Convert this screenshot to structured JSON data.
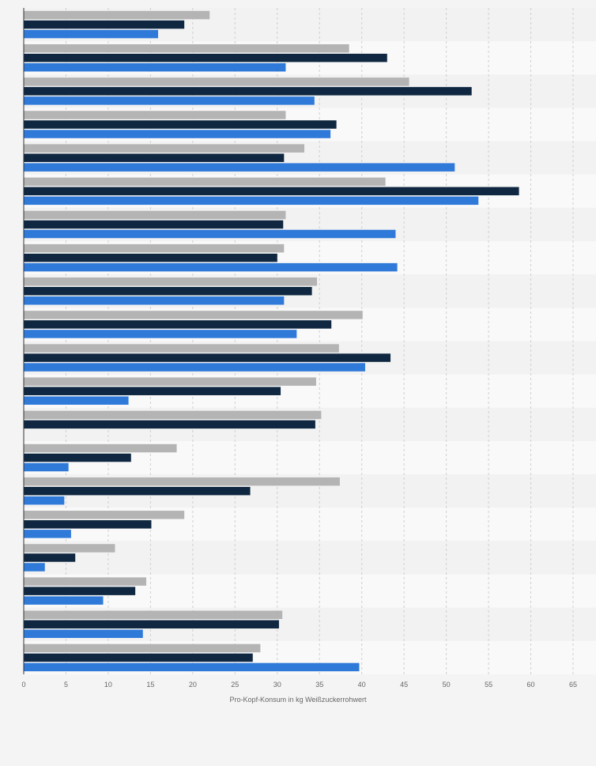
{
  "chart_data": {
    "type": "bar",
    "orientation": "horizontal",
    "title": "",
    "xlabel": "Pro-Kopf-Konsum in kg Weißzuckerrohwert",
    "ylabel": "",
    "xlim": [
      0,
      65
    ],
    "xticks": [
      0,
      5,
      10,
      15,
      20,
      25,
      30,
      35,
      40,
      45,
      50,
      55,
      60,
      65
    ],
    "grid": true,
    "categories": [
      "",
      "",
      "",
      "",
      "",
      "",
      "",
      "",
      "",
      "",
      "",
      "",
      "",
      "",
      "",
      "",
      "",
      "",
      "",
      ""
    ],
    "series": [
      {
        "color": "#b4b4b4",
        "values": [
          22,
          38.5,
          45.6,
          31,
          33.2,
          42.8,
          31,
          30.8,
          34.7,
          40.1,
          37.3,
          34.6,
          35.2,
          18.1,
          37.4,
          19,
          10.8,
          14.5,
          30.6,
          28
        ]
      },
      {
        "color": "#0f2740",
        "values": [
          19,
          43,
          53,
          37,
          30.8,
          58.6,
          30.7,
          30,
          34.1,
          36.4,
          43.4,
          30.4,
          34.5,
          12.7,
          26.8,
          15.1,
          6.1,
          13.2,
          30.2,
          27.1
        ]
      },
      {
        "color": "#2f7ad9",
        "values": [
          15.9,
          31,
          34.4,
          36.3,
          51,
          53.8,
          44,
          44.2,
          30.8,
          32.3,
          40.4,
          12.4,
          null,
          5.3,
          4.8,
          5.6,
          2.5,
          9.4,
          14.1,
          39.7
        ]
      }
    ]
  }
}
